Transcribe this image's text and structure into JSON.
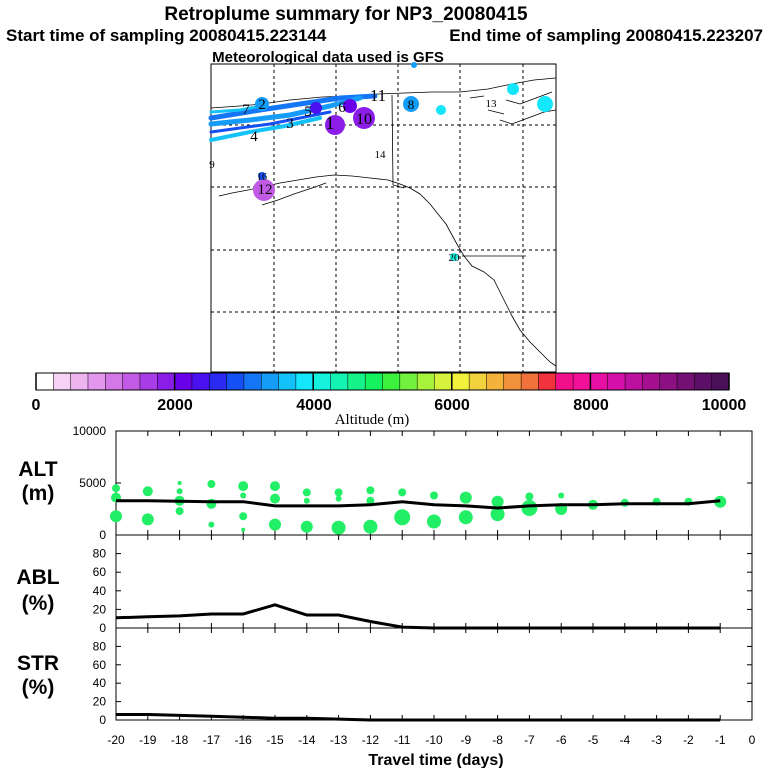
{
  "header": {
    "title": "Retroplume summary for NP3_20080415",
    "start_label": "Start time of sampling 20080415.223144",
    "end_label": "End time of sampling 20080415.223207",
    "met_label": "Meteorological data used is GFS"
  },
  "colorbar": {
    "ticks": [
      "0",
      "2000",
      "4000",
      "6000",
      "8000",
      "10000"
    ],
    "label": "Altitude (m)",
    "colors": [
      "#ffffff",
      "#f6d2f6",
      "#eeb4f0",
      "#e296ec",
      "#d478e8",
      "#c25ae6",
      "#a83ce6",
      "#8a1ee8",
      "#6a00ea",
      "#4a10ee",
      "#2a2af2",
      "#1450f4",
      "#1476f6",
      "#149cf8",
      "#14c2fa",
      "#14e6fc",
      "#14f2de",
      "#14f2b4",
      "#14f28a",
      "#14f260",
      "#3cf23c",
      "#72f23c",
      "#a8f23c",
      "#d6f23c",
      "#f2f23c",
      "#f2d23c",
      "#f2b23c",
      "#f2923c",
      "#f2723c",
      "#f2323c",
      "#f2108a",
      "#f21099",
      "#e810a4",
      "#d410a8",
      "#bc109e",
      "#a41090",
      "#8c1082",
      "#741074",
      "#5c1068",
      "#4a105a"
    ]
  },
  "map": {
    "labels": [
      "1",
      "2",
      "3",
      "4",
      "5",
      "6",
      "7",
      "8",
      "9",
      "10",
      "11",
      "12",
      "13",
      "14",
      "16",
      "20"
    ]
  },
  "panels": {
    "alt": {
      "label": "ALT",
      "unit": "(m)"
    },
    "abl": {
      "label": "ABL",
      "unit": "(%)"
    },
    "str": {
      "label": "STR",
      "unit": "(%)"
    }
  },
  "x_label": "Travel time (days)",
  "chart_data": [
    {
      "type": "line",
      "name": "ALT",
      "ylabel": "ALT (m)",
      "ylim": [
        0,
        10000
      ],
      "yticks": [
        "10000",
        "5000",
        "0"
      ],
      "yticks_values": [
        10000,
        5000,
        0
      ],
      "xlim": [
        -20,
        0
      ],
      "xticks": [
        "-20",
        "-19",
        "-18",
        "-17",
        "-16",
        "-15",
        "-14",
        "-13",
        "-12",
        "-11",
        "-10",
        "-9",
        "-8",
        "-7",
        "-6",
        "-5",
        "-4",
        "-3",
        "-2",
        "-1",
        "0"
      ],
      "x": [
        -20,
        -19,
        -18,
        -17,
        -16,
        -15,
        -14,
        -13,
        -12,
        -11,
        -10,
        -9,
        -8,
        -7,
        -6,
        -5,
        -4,
        -3,
        -2,
        -1
      ],
      "median": [
        3300,
        3300,
        3250,
        3200,
        3200,
        2800,
        2800,
        2800,
        2900,
        3200,
        2900,
        2800,
        2600,
        2800,
        2900,
        2900,
        3000,
        3000,
        3000,
        3300
      ],
      "points": [
        {
          "x": -20,
          "y": 4500,
          "r": 4
        },
        {
          "x": -20,
          "y": 3600,
          "r": 5
        },
        {
          "x": -20,
          "y": 1800,
          "r": 6
        },
        {
          "x": -19,
          "y": 4200,
          "r": 5
        },
        {
          "x": -19,
          "y": 1500,
          "r": 6
        },
        {
          "x": -18,
          "y": 5000,
          "r": 2
        },
        {
          "x": -18,
          "y": 4200,
          "r": 3
        },
        {
          "x": -18,
          "y": 3300,
          "r": 5
        },
        {
          "x": -18,
          "y": 2300,
          "r": 4
        },
        {
          "x": -17,
          "y": 4900,
          "r": 4
        },
        {
          "x": -17,
          "y": 3000,
          "r": 5
        },
        {
          "x": -17,
          "y": 1000,
          "r": 3
        },
        {
          "x": -16,
          "y": 4700,
          "r": 5
        },
        {
          "x": -16,
          "y": 3800,
          "r": 3
        },
        {
          "x": -16,
          "y": 1800,
          "r": 4
        },
        {
          "x": -16,
          "y": 500,
          "r": 2
        },
        {
          "x": -15,
          "y": 4700,
          "r": 5
        },
        {
          "x": -15,
          "y": 3500,
          "r": 5
        },
        {
          "x": -15,
          "y": 1000,
          "r": 6
        },
        {
          "x": -14,
          "y": 4100,
          "r": 4
        },
        {
          "x": -14,
          "y": 3300,
          "r": 3
        },
        {
          "x": -14,
          "y": 800,
          "r": 6
        },
        {
          "x": -13,
          "y": 4100,
          "r": 4
        },
        {
          "x": -13,
          "y": 3500,
          "r": 3
        },
        {
          "x": -13,
          "y": 700,
          "r": 7
        },
        {
          "x": -12,
          "y": 4300,
          "r": 4
        },
        {
          "x": -12,
          "y": 3300,
          "r": 4
        },
        {
          "x": -12,
          "y": 800,
          "r": 7
        },
        {
          "x": -11,
          "y": 4100,
          "r": 4
        },
        {
          "x": -11,
          "y": 1700,
          "r": 8
        },
        {
          "x": -10,
          "y": 3800,
          "r": 4
        },
        {
          "x": -10,
          "y": 1300,
          "r": 7
        },
        {
          "x": -9,
          "y": 3600,
          "r": 6
        },
        {
          "x": -9,
          "y": 1700,
          "r": 7
        },
        {
          "x": -8,
          "y": 3200,
          "r": 6
        },
        {
          "x": -8,
          "y": 2000,
          "r": 7
        },
        {
          "x": -7,
          "y": 3700,
          "r": 4
        },
        {
          "x": -7,
          "y": 2600,
          "r": 8
        },
        {
          "x": -6,
          "y": 3800,
          "r": 3
        },
        {
          "x": -6,
          "y": 2500,
          "r": 6
        },
        {
          "x": -5,
          "y": 2900,
          "r": 5
        },
        {
          "x": -4,
          "y": 3100,
          "r": 4
        },
        {
          "x": -3,
          "y": 3200,
          "r": 4
        },
        {
          "x": -2,
          "y": 3200,
          "r": 4
        },
        {
          "x": -1,
          "y": 3200,
          "r": 6
        }
      ]
    },
    {
      "type": "line",
      "name": "ABL",
      "ylabel": "ABL (%)",
      "ylim": [
        0,
        100
      ],
      "yticks": [
        "80",
        "60",
        "40",
        "20",
        "0"
      ],
      "yticks_values": [
        80,
        60,
        40,
        20,
        0
      ],
      "xlim": [
        -20,
        0
      ],
      "x": [
        -20,
        -19,
        -18,
        -17,
        -16,
        -15,
        -14,
        -13,
        -12,
        -11,
        -10,
        -9,
        -8,
        -7,
        -6,
        -5,
        -4,
        -3,
        -2,
        -1
      ],
      "values": [
        11,
        12,
        13,
        15,
        15,
        25,
        14,
        14,
        7,
        1,
        0,
        0,
        0,
        0,
        0,
        0,
        0,
        0,
        0,
        0
      ]
    },
    {
      "type": "line",
      "name": "STR",
      "ylabel": "STR (%)",
      "ylim": [
        0,
        100
      ],
      "yticks": [
        "80",
        "60",
        "40",
        "20",
        "0"
      ],
      "yticks_values": [
        80,
        60,
        40,
        20,
        0
      ],
      "xlim": [
        -20,
        0
      ],
      "x": [
        -20,
        -19,
        -18,
        -17,
        -16,
        -15,
        -14,
        -13,
        -12,
        -11,
        -10,
        -9,
        -8,
        -7,
        -6,
        -5,
        -4,
        -3,
        -2,
        -1
      ],
      "values": [
        6,
        6,
        5,
        4,
        3,
        2,
        2,
        1,
        0,
        0,
        0,
        0,
        0,
        0,
        0,
        0,
        0,
        0,
        0,
        0
      ]
    }
  ]
}
